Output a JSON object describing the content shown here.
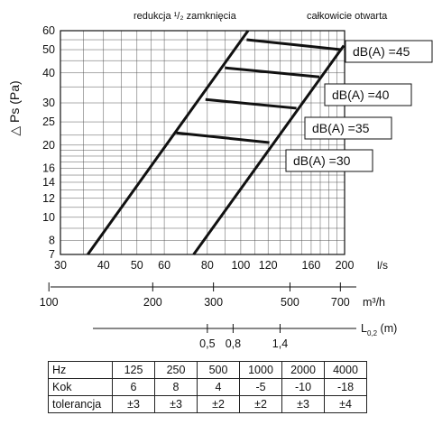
{
  "chart_data": {
    "type": "line",
    "ylabel": "△ Ps (Pa)",
    "top_labels": {
      "reduction": "redukcja ¹/₂ zamknięcia",
      "open": "całkowicie otwarta"
    },
    "yscale": "log",
    "xscale": "log",
    "ylim": [
      7,
      60
    ],
    "xlim": [
      30,
      200
    ],
    "y_ticks": [
      7,
      8,
      10,
      12,
      14,
      16,
      20,
      25,
      30,
      40,
      50,
      60
    ],
    "x_ticks": [
      30,
      40,
      50,
      60,
      80,
      100,
      120,
      160,
      200
    ],
    "x_tick_labels": [
      "30",
      "40",
      "50",
      "60",
      "80",
      "100",
      "120",
      "160",
      "200"
    ],
    "x_unit": "l/s",
    "grid": true,
    "series": [
      {
        "name": "redukcja ¹/₂ zamknięcia",
        "points": [
          [
            36,
            7
          ],
          [
            105,
            60
          ]
        ]
      },
      {
        "name": "całkowicie otwarta",
        "points": [
          [
            73,
            7
          ],
          [
            199,
            52
          ]
        ]
      }
    ],
    "iso_lines": [
      {
        "label": "dB(A) =45",
        "points": [
          [
            104,
            55
          ],
          [
            195,
            50
          ]
        ]
      },
      {
        "label": "dB(A) =40",
        "points": [
          [
            90,
            42
          ],
          [
            169,
            38.5
          ]
        ]
      },
      {
        "label": "dB(A) =35",
        "points": [
          [
            79,
            31
          ],
          [
            145,
            28.5
          ]
        ]
      },
      {
        "label": "dB(A) =30",
        "points": [
          [
            65,
            22.5
          ],
          [
            121,
            20.5
          ]
        ]
      }
    ],
    "axis_m3h": {
      "unit": "m³/h",
      "ticks": [
        100,
        200,
        300,
        500,
        700
      ],
      "tick_labels": [
        "100",
        "200",
        "300",
        "500",
        "700"
      ]
    },
    "axis_l02": {
      "unit_main": "L",
      "unit_sub": "0,2",
      "unit_suffix": " (m)",
      "ticks": [
        0.5,
        0.8,
        1.4
      ],
      "tick_labels": [
        "0,5",
        "0,8",
        "1,4"
      ],
      "tick_l_s": [
        80,
        95,
        130
      ]
    }
  },
  "table": {
    "rows": [
      [
        "Hz",
        "125",
        "250",
        "500",
        "1000",
        "2000",
        "4000"
      ],
      [
        "Kok",
        "6",
        "8",
        "4",
        "-5",
        "-10",
        "-18"
      ],
      [
        "tolerancja",
        "±3",
        "±3",
        "±2",
        "±2",
        "±3",
        "±4"
      ]
    ]
  }
}
